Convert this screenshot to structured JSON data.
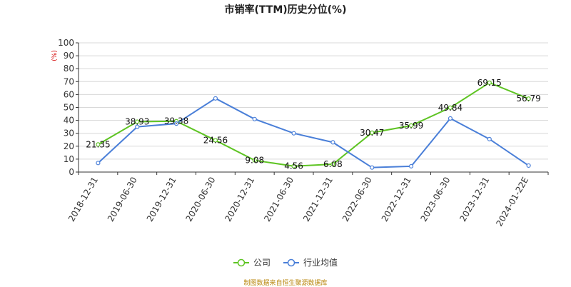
{
  "title": "市销率(TTM)历史分位(%)",
  "source_note": "制图数据来自恒生聚源数据库",
  "colors": {
    "company": "#5ec423",
    "industry": "#4a7fd8",
    "grid": "#d8d8d8",
    "axis": "#333333",
    "unit": "#d40000"
  },
  "chart_data": {
    "type": "line",
    "title": "市销率(TTM)历史分位(%)",
    "ylabel": "(%)",
    "xlabel": "",
    "ylim": [
      0,
      100
    ],
    "yticks": [
      0,
      10,
      20,
      30,
      40,
      50,
      60,
      70,
      80,
      90,
      100
    ],
    "grid": true,
    "legend_position": "bottom",
    "categories": [
      "2018-12-31",
      "2019-06-30",
      "2019-12-31",
      "2020-06-30",
      "2020-12-31",
      "2021-06-30",
      "2021-12-31",
      "2022-06-30",
      "2022-12-31",
      "2023-06-30",
      "2023-12-31",
      "2024-01-22E"
    ],
    "series": [
      {
        "name": "公司",
        "color": "#5ec423",
        "labeled": true,
        "values": [
          21.35,
          38.93,
          39.38,
          24.56,
          9.08,
          4.56,
          6.08,
          30.47,
          35.99,
          49.84,
          69.15,
          56.79
        ],
        "labels": [
          "21.35",
          "38.93",
          "39.38",
          "24.56",
          "9.08",
          "4.56",
          "6.08",
          "30.47",
          "35.99",
          "49.84",
          "69.15",
          "56.79"
        ]
      },
      {
        "name": "行业均值",
        "color": "#4a7fd8",
        "labeled": false,
        "values": [
          7.0,
          35.0,
          37.5,
          57.0,
          41.0,
          30.0,
          23.0,
          3.5,
          4.5,
          41.5,
          25.5,
          5.0
        ]
      }
    ]
  }
}
